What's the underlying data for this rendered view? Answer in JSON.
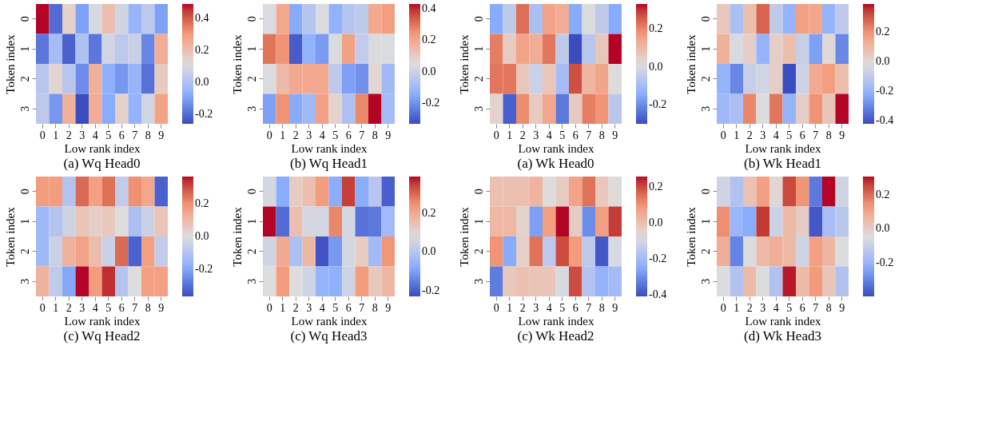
{
  "chart_data": [
    {
      "type": "heatmap",
      "title": "(a) Wq Head0",
      "xlabel": "Low rank  index",
      "ylabel": "Token index",
      "categories": [
        "0",
        "1",
        "2",
        "3",
        "4",
        "5",
        "6",
        "7",
        "8",
        "9"
      ],
      "y_categories": [
        "0",
        "1",
        "2",
        "3"
      ],
      "cells": [
        [
          0.49,
          -0.2,
          0.15,
          -0.1,
          0.1,
          0.2,
          0.08,
          -0.05,
          0.03,
          -0.1
        ],
        [
          -0.18,
          -0.02,
          -0.22,
          0.0,
          -0.18,
          0.08,
          0.03,
          0.06,
          -0.15,
          0.25
        ],
        [
          0.02,
          0.14,
          0.02,
          -0.14,
          0.24,
          -0.07,
          -0.12,
          -0.05,
          -0.19,
          0.17
        ],
        [
          0.03,
          -0.12,
          0.24,
          -0.26,
          0.25,
          -0.08,
          0.15,
          -0.06,
          0.08,
          0.28
        ]
      ],
      "clim": [
        -0.26,
        0.49
      ],
      "cticks": [
        {
          "value": -0.2,
          "label": "-0.2"
        },
        {
          "value": 0.0,
          "label": "0.0"
        },
        {
          "value": 0.2,
          "label": "0.2"
        },
        {
          "value": 0.4,
          "label": "0.4"
        }
      ]
    },
    {
      "type": "heatmap",
      "title": "(b) Wq Head1",
      "xlabel": "Low rank  index",
      "ylabel": "Token index",
      "categories": [
        "0",
        "1",
        "2",
        "3",
        "4",
        "5",
        "6",
        "7",
        "8",
        "9"
      ],
      "y_categories": [
        "0",
        "1",
        "2",
        "3"
      ],
      "cells": [
        [
          0.04,
          0.2,
          -0.15,
          -0.05,
          0.04,
          -0.13,
          -0.05,
          -0.03,
          0.2,
          0.23
        ],
        [
          0.3,
          0.25,
          -0.3,
          -0.13,
          -0.18,
          0.04,
          0.22,
          -0.02,
          0.04,
          0.04
        ],
        [
          0.04,
          0.15,
          0.2,
          0.2,
          0.2,
          -0.03,
          -0.17,
          -0.2,
          0.07,
          -0.1
        ],
        [
          -0.17,
          0.25,
          -0.15,
          -0.1,
          0.22,
          0.08,
          -0.07,
          0.27,
          0.43,
          -0.09
        ]
      ],
      "clim": [
        -0.33,
        0.43
      ],
      "cticks": [
        {
          "value": -0.2,
          "label": "-0.2"
        },
        {
          "value": 0.0,
          "label": "0.0"
        },
        {
          "value": 0.2,
          "label": "0.2"
        },
        {
          "value": 0.4,
          "label": "0.4"
        }
      ]
    },
    {
      "type": "heatmap",
      "title": "(a) Wk Head0",
      "xlabel": "Low rank  index",
      "ylabel": "Token index",
      "categories": [
        "0",
        "1",
        "2",
        "3",
        "4",
        "5",
        "6",
        "7",
        "8",
        "9"
      ],
      "y_categories": [
        "0",
        "1",
        "2",
        "3"
      ],
      "cells": [
        [
          -0.15,
          -0.05,
          0.23,
          -0.09,
          0.15,
          0.13,
          -0.15,
          0.01,
          -0.05,
          -0.15
        ],
        [
          0.21,
          0.06,
          0.15,
          0.13,
          0.22,
          -0.05,
          -0.3,
          -0.06,
          0.07,
          0.33
        ],
        [
          0.22,
          0.22,
          0.07,
          -0.03,
          0.07,
          -0.1,
          0.27,
          0.11,
          0.15,
          0.02
        ],
        [
          0.04,
          -0.27,
          0.19,
          0.06,
          0.14,
          -0.23,
          0.06,
          0.21,
          0.18,
          -0.06
        ]
      ],
      "clim": [
        -0.3,
        0.33
      ],
      "cticks": [
        {
          "value": -0.2,
          "label": "-0.2"
        },
        {
          "value": 0.0,
          "label": "0.0"
        },
        {
          "value": 0.2,
          "label": "0.2"
        }
      ]
    },
    {
      "type": "heatmap",
      "title": "(b) Wk Head1",
      "xlabel": "Low rank  index",
      "ylabel": "Token index",
      "categories": [
        "0",
        "1",
        "2",
        "3",
        "4",
        "5",
        "6",
        "7",
        "8",
        "9"
      ],
      "y_categories": [
        "0",
        "1",
        "2",
        "3"
      ],
      "cells": [
        [
          0.05,
          -0.15,
          0.08,
          0.28,
          -0.1,
          -0.2,
          0.17,
          0.15,
          -0.2,
          -0.1
        ],
        [
          0.12,
          -0.03,
          0.03,
          -0.2,
          0.03,
          0.08,
          -0.08,
          -0.25,
          0.0,
          -0.3
        ],
        [
          -0.2,
          -0.3,
          -0.08,
          -0.05,
          0.03,
          -0.42,
          -0.06,
          0.14,
          0.18,
          0.08
        ],
        [
          -0.18,
          -0.15,
          0.22,
          -0.02,
          0.25,
          -0.2,
          0.03,
          0.2,
          0.06,
          0.39
        ]
      ],
      "clim": [
        -0.42,
        0.39
      ],
      "cticks": [
        {
          "value": -0.4,
          "label": "-0.4"
        },
        {
          "value": -0.2,
          "label": "-0.2"
        },
        {
          "value": 0.0,
          "label": "0.0"
        },
        {
          "value": 0.2,
          "label": "0.2"
        }
      ]
    },
    {
      "type": "heatmap",
      "title": "(c) Wq Head2",
      "xlabel": "Low rank  index",
      "ylabel": "Token index",
      "categories": [
        "0",
        "1",
        "2",
        "3",
        "4",
        "5",
        "6",
        "7",
        "8",
        "9"
      ],
      "y_categories": [
        "0",
        "1",
        "2",
        "3"
      ],
      "cells": [
        [
          0.18,
          0.18,
          -0.1,
          0.26,
          0.17,
          0.25,
          -0.07,
          0.2,
          0.15,
          -0.33
        ],
        [
          -0.15,
          -0.1,
          -0.04,
          0.07,
          0.04,
          0.06,
          0.0,
          -0.12,
          -0.05,
          0.07
        ],
        [
          -0.15,
          -0.05,
          0.12,
          0.16,
          0.09,
          -0.05,
          0.26,
          -0.33,
          0.17,
          -0.07
        ],
        [
          0.12,
          -0.08,
          -0.2,
          0.37,
          0.18,
          0.34,
          -0.1,
          0.0,
          0.17,
          0.17
        ]
      ],
      "clim": [
        -0.37,
        0.37
      ],
      "cticks": [
        {
          "value": -0.2,
          "label": "-0.2"
        },
        {
          "value": 0.0,
          "label": "0.0"
        },
        {
          "value": 0.2,
          "label": "0.2"
        }
      ]
    },
    {
      "type": "heatmap",
      "title": "(c) Wq Head3",
      "xlabel": "Low rank  index",
      "ylabel": "Token index",
      "categories": [
        "0",
        "1",
        "2",
        "3",
        "4",
        "5",
        "6",
        "7",
        "8",
        "9"
      ],
      "y_categories": [
        "0",
        "1",
        "2",
        "3"
      ],
      "cells": [
        [
          0.06,
          -0.08,
          0.12,
          0.15,
          0.23,
          -0.08,
          0.35,
          -0.08,
          0.0,
          -0.2
        ],
        [
          0.39,
          -0.18,
          0.15,
          0.06,
          0.06,
          0.26,
          0.06,
          -0.17,
          -0.16,
          -0.04
        ],
        [
          0.05,
          0.2,
          -0.02,
          0.17,
          -0.22,
          -0.11,
          0.06,
          0.12,
          -0.04,
          0.24
        ],
        [
          0.08,
          0.23,
          0.08,
          0.05,
          -0.06,
          -0.07,
          0.05,
          0.23,
          0.13,
          0.17
        ]
      ],
      "clim": [
        -0.23,
        0.39
      ],
      "cticks": [
        {
          "value": -0.2,
          "label": "-0.2"
        },
        {
          "value": 0.0,
          "label": "0.0"
        },
        {
          "value": 0.2,
          "label": "0.2"
        }
      ]
    },
    {
      "type": "heatmap",
      "title": "(c) Wk Head2",
      "xlabel": "Low rank  index",
      "ylabel": "Token index",
      "categories": [
        "0",
        "1",
        "2",
        "3",
        "4",
        "5",
        "6",
        "7",
        "8",
        "9"
      ],
      "y_categories": [
        "0",
        "1",
        "2",
        "3"
      ],
      "cells": [
        [
          0.0,
          0.0,
          0.0,
          0.03,
          -0.07,
          -0.03,
          0.07,
          0.15,
          -0.02,
          -0.07
        ],
        [
          0.02,
          0.02,
          -0.05,
          -0.27,
          0.08,
          0.26,
          -0.03,
          -0.3,
          0.08,
          0.22
        ],
        [
          0.1,
          -0.25,
          -0.04,
          0.15,
          -0.15,
          0.2,
          0.09,
          -0.15,
          -0.39,
          -0.09
        ],
        [
          -0.33,
          -0.02,
          0.0,
          -0.01,
          -0.01,
          -0.09,
          0.2,
          -0.17,
          -0.23,
          -0.2
        ]
      ],
      "clim": [
        -0.41,
        0.26
      ],
      "cticks": [
        {
          "value": -0.4,
          "label": "-0.4"
        },
        {
          "value": -0.2,
          "label": "-0.2"
        },
        {
          "value": 0.0,
          "label": "0.0"
        },
        {
          "value": 0.2,
          "label": "0.2"
        }
      ]
    },
    {
      "type": "heatmap",
      "title": "(d) Wk Head3",
      "xlabel": "Low rank  index",
      "ylabel": "Token index",
      "categories": [
        "0",
        "1",
        "2",
        "3",
        "4",
        "5",
        "6",
        "7",
        "8",
        "9"
      ],
      "y_categories": [
        "0",
        "1",
        "2",
        "3"
      ],
      "cells": [
        [
          -0.08,
          -0.15,
          0.03,
          0.12,
          -0.03,
          0.25,
          0.14,
          -0.32,
          0.31,
          -0.08
        ],
        [
          0.15,
          -0.2,
          -0.23,
          0.27,
          -0.09,
          0.05,
          0.0,
          -0.38,
          -0.17,
          -0.13
        ],
        [
          0.08,
          -0.3,
          -0.05,
          0.05,
          0.08,
          0.05,
          -0.08,
          0.12,
          0.06,
          -0.05
        ],
        [
          -0.05,
          -0.15,
          0.05,
          -0.05,
          -0.15,
          0.3,
          0.05,
          0.13,
          0.02,
          -0.15
        ]
      ],
      "clim": [
        -0.4,
        0.31
      ],
      "cticks": [
        {
          "value": -0.2,
          "label": "-0.2"
        },
        {
          "value": 0.0,
          "label": "0.0"
        },
        {
          "value": 0.2,
          "label": "0.2"
        }
      ]
    }
  ]
}
